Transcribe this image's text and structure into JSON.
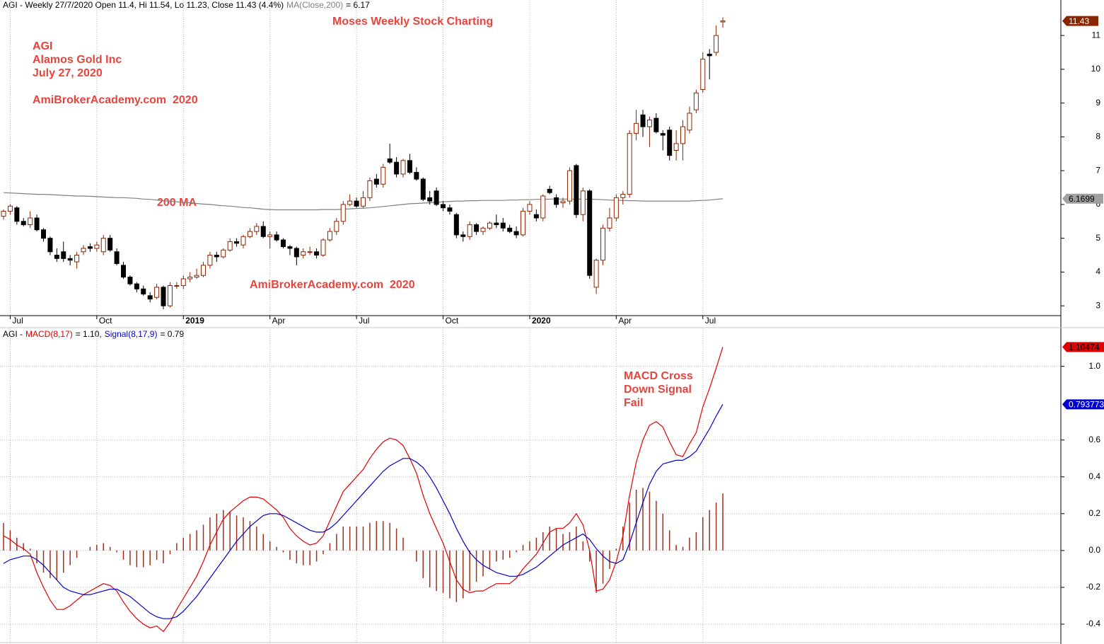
{
  "chart_data": [
    {
      "type": "candlestick",
      "header": {
        "title": "AGI - Weekly 27/7/2020 Open 11.4, Hi 11.54, Lo 11.23, Close 11.43 (4.4%)",
        "ma_name": "MA(Close,200)",
        "ma_readout": "= 6.17"
      },
      "annotations": {
        "banner": "Moses Weekly Stock Charting",
        "symbol": "AGI",
        "company": "Alamos Gold Inc",
        "date": "July 27, 2020",
        "site_top": "AmiBrokerAcademy.com  2020",
        "site_bottom": "AmiBrokerAcademy.com  2020",
        "ma_note": "200 MA"
      },
      "candle_up_color": "#8b2500",
      "candle_down_color": "#000000",
      "ma_color": "#808080",
      "close_label_color": "#8b2500",
      "ma_label_color": "#a0a0a0",
      "ylim": [
        2.71,
        12.05
      ],
      "yticks": [
        3,
        4,
        5,
        6,
        7,
        8,
        9,
        10,
        11
      ],
      "xticks": [
        {
          "value": 1,
          "label": "Jul"
        },
        {
          "value": 14,
          "label": "Oct"
        },
        {
          "value": 27,
          "label": "2019"
        },
        {
          "value": 40,
          "label": "Apr"
        },
        {
          "value": 53,
          "label": "Jul"
        },
        {
          "value": 66,
          "label": "Oct"
        },
        {
          "value": 79,
          "label": "2020"
        },
        {
          "value": 92,
          "label": "Apr"
        },
        {
          "value": 105,
          "label": "Jul"
        }
      ],
      "vgrid": true,
      "hgrid": false,
      "candles": [
        [
          5.65,
          5.85,
          5.55,
          5.8
        ],
        [
          5.8,
          6.0,
          5.7,
          5.95
        ],
        [
          5.9,
          5.95,
          5.4,
          5.5
        ],
        [
          5.5,
          5.6,
          5.35,
          5.4
        ],
        [
          5.4,
          5.8,
          5.3,
          5.6
        ],
        [
          5.6,
          5.7,
          5.2,
          5.25
        ],
        [
          5.25,
          5.3,
          4.9,
          5.0
        ],
        [
          5.0,
          5.05,
          4.5,
          4.6
        ],
        [
          4.5,
          4.7,
          4.3,
          4.4
        ],
        [
          4.6,
          4.9,
          4.3,
          4.4
        ],
        [
          4.4,
          4.5,
          4.2,
          4.35
        ],
        [
          4.3,
          4.6,
          4.1,
          4.5
        ],
        [
          4.6,
          4.8,
          4.5,
          4.7
        ],
        [
          4.75,
          4.85,
          4.6,
          4.7
        ],
        [
          4.7,
          4.9,
          4.6,
          4.8
        ],
        [
          4.6,
          5.1,
          4.5,
          5.0
        ],
        [
          5.0,
          5.1,
          4.6,
          4.65
        ],
        [
          4.6,
          4.7,
          4.2,
          4.25
        ],
        [
          4.2,
          4.3,
          3.8,
          3.85
        ],
        [
          3.85,
          3.9,
          3.6,
          3.65
        ],
        [
          3.65,
          3.7,
          3.4,
          3.5
        ],
        [
          3.5,
          3.6,
          3.3,
          3.35
        ],
        [
          3.3,
          3.4,
          3.1,
          3.2
        ],
        [
          3.25,
          3.65,
          3.2,
          3.55
        ],
        [
          3.55,
          3.6,
          2.9,
          3.0
        ],
        [
          3.0,
          3.7,
          2.95,
          3.6
        ],
        [
          3.6,
          3.7,
          3.5,
          3.6
        ],
        [
          3.6,
          3.9,
          3.5,
          3.8
        ],
        [
          3.8,
          4.0,
          3.7,
          3.85
        ],
        [
          3.85,
          4.1,
          3.8,
          3.9
        ],
        [
          3.9,
          4.3,
          3.85,
          4.2
        ],
        [
          4.2,
          4.6,
          4.1,
          4.5
        ],
        [
          4.5,
          4.6,
          4.3,
          4.45
        ],
        [
          4.45,
          4.7,
          4.4,
          4.65
        ],
        [
          4.65,
          5.0,
          4.6,
          4.9
        ],
        [
          4.9,
          5.0,
          4.75,
          4.85
        ],
        [
          4.8,
          5.1,
          4.7,
          5.05
        ],
        [
          5.05,
          5.3,
          5.0,
          5.2
        ],
        [
          5.2,
          5.45,
          5.1,
          5.35
        ],
        [
          5.35,
          5.5,
          5.0,
          5.05
        ],
        [
          5.05,
          5.2,
          4.7,
          5.1
        ],
        [
          5.1,
          5.2,
          4.9,
          4.95
        ],
        [
          4.95,
          5.0,
          4.7,
          4.75
        ],
        [
          4.75,
          4.8,
          4.5,
          4.7
        ],
        [
          4.7,
          4.75,
          4.2,
          4.45
        ],
        [
          4.5,
          4.7,
          4.4,
          4.6
        ],
        [
          4.6,
          4.75,
          4.5,
          4.6
        ],
        [
          4.6,
          4.7,
          4.4,
          4.5
        ],
        [
          4.5,
          5.0,
          4.45,
          4.95
        ],
        [
          4.95,
          5.3,
          4.9,
          5.2
        ],
        [
          5.2,
          5.6,
          5.1,
          5.5
        ],
        [
          5.5,
          6.1,
          5.4,
          6.0
        ],
        [
          6.0,
          6.3,
          5.95,
          6.1
        ],
        [
          6.1,
          6.2,
          5.9,
          5.95
        ],
        [
          5.95,
          6.4,
          5.9,
          6.2
        ],
        [
          6.2,
          6.8,
          6.1,
          6.7
        ],
        [
          6.75,
          6.9,
          6.5,
          6.6
        ],
        [
          6.6,
          7.2,
          6.5,
          7.1
        ],
        [
          7.35,
          7.8,
          7.2,
          7.25
        ],
        [
          7.25,
          7.4,
          6.8,
          6.9
        ],
        [
          6.9,
          7.35,
          6.8,
          7.3
        ],
        [
          7.3,
          7.5,
          6.9,
          6.95
        ],
        [
          6.95,
          7.1,
          6.7,
          6.75
        ],
        [
          6.75,
          6.8,
          6.1,
          6.15
        ],
        [
          6.2,
          6.4,
          6.0,
          6.1
        ],
        [
          6.4,
          6.5,
          5.95,
          6.0
        ],
        [
          6.0,
          6.1,
          5.8,
          5.9
        ],
        [
          5.9,
          6.0,
          5.7,
          5.8
        ],
        [
          5.7,
          5.75,
          5.0,
          5.1
        ],
        [
          5.1,
          5.2,
          4.9,
          5.05
        ],
        [
          5.05,
          5.5,
          4.95,
          5.4
        ],
        [
          5.4,
          5.45,
          5.1,
          5.2
        ],
        [
          5.2,
          5.35,
          5.1,
          5.3
        ],
        [
          5.3,
          5.5,
          5.25,
          5.45
        ],
        [
          5.45,
          5.7,
          5.3,
          5.4
        ],
        [
          5.45,
          5.6,
          5.2,
          5.3
        ],
        [
          5.3,
          5.4,
          5.15,
          5.2
        ],
        [
          5.2,
          5.35,
          5.0,
          5.1
        ],
        [
          5.1,
          5.9,
          5.05,
          5.8
        ],
        [
          5.8,
          6.1,
          5.7,
          6.0
        ],
        [
          5.7,
          5.85,
          5.5,
          5.6
        ],
        [
          5.6,
          6.3,
          5.5,
          6.25
        ],
        [
          6.45,
          6.55,
          6.3,
          6.35
        ],
        [
          6.2,
          6.3,
          5.9,
          6.0
        ],
        [
          6.05,
          6.2,
          5.9,
          6.1
        ],
        [
          6.1,
          7.1,
          6.0,
          7.0
        ],
        [
          7.15,
          7.2,
          5.6,
          5.7
        ],
        [
          5.7,
          6.5,
          5.5,
          6.4
        ],
        [
          6.4,
          6.45,
          3.8,
          3.9
        ],
        [
          3.55,
          4.4,
          3.35,
          4.35
        ],
        [
          4.35,
          5.4,
          4.2,
          5.3
        ],
        [
          5.3,
          5.9,
          5.2,
          5.6
        ],
        [
          5.6,
          6.3,
          5.5,
          6.2
        ],
        [
          6.2,
          6.4,
          6.0,
          6.3
        ],
        [
          6.3,
          8.2,
          6.2,
          8.1
        ],
        [
          8.1,
          8.8,
          7.9,
          8.4
        ],
        [
          8.65,
          8.8,
          8.0,
          8.3
        ],
        [
          8.3,
          8.6,
          7.7,
          8.5
        ],
        [
          8.55,
          8.7,
          8.1,
          8.15
        ],
        [
          8.1,
          8.2,
          7.6,
          8.05
        ],
        [
          8.2,
          8.3,
          7.3,
          7.45
        ],
        [
          7.6,
          8.2,
          7.3,
          7.8
        ],
        [
          7.8,
          8.5,
          7.3,
          8.3
        ],
        [
          8.2,
          8.9,
          8.1,
          8.7
        ],
        [
          8.8,
          9.4,
          8.7,
          9.3
        ],
        [
          9.4,
          10.5,
          9.3,
          10.3
        ],
        [
          10.45,
          10.6,
          9.7,
          10.4
        ],
        [
          10.5,
          11.3,
          10.4,
          11.0
        ],
        [
          11.4,
          11.54,
          11.23,
          11.43
        ]
      ],
      "ma": [
        6.35,
        6.34,
        6.33,
        6.32,
        6.31,
        6.3,
        6.3,
        6.29,
        6.28,
        6.27,
        6.26,
        6.25,
        6.25,
        6.24,
        6.23,
        6.22,
        6.21,
        6.2,
        6.2,
        6.19,
        6.18,
        6.16,
        6.15,
        6.13,
        6.11,
        6.1,
        6.08,
        6.06,
        6.05,
        6.03,
        6.01,
        6.0,
        5.98,
        5.96,
        5.95,
        5.93,
        5.91,
        5.9,
        5.88,
        5.86,
        5.85,
        5.84,
        5.84,
        5.84,
        5.84,
        5.84,
        5.84,
        5.84,
        5.85,
        5.85,
        5.85,
        5.86,
        5.87,
        5.88,
        5.89,
        5.9,
        5.92,
        5.94,
        5.96,
        5.98,
        6.0,
        6.02,
        6.03,
        6.04,
        6.05,
        6.06,
        6.08,
        6.09,
        6.1,
        6.1,
        6.11,
        6.11,
        6.12,
        6.12,
        6.12,
        6.12,
        6.13,
        6.13,
        6.14,
        6.14,
        6.15,
        6.15,
        6.16,
        6.16,
        6.16,
        6.16,
        6.16,
        6.16,
        6.15,
        6.15,
        6.14,
        6.13,
        6.12,
        6.12,
        6.11,
        6.11,
        6.1,
        6.1,
        6.1,
        6.1,
        6.1,
        6.1,
        6.1,
        6.1,
        6.11,
        6.12,
        6.13,
        6.15,
        6.1699
      ]
    },
    {
      "type": "macd",
      "header": {
        "symbol": "AGI -",
        "macd_readout": "= 1.10,",
        "signal_readout": "= 0.79"
      },
      "annotations": {
        "line1": "MACD Cross",
        "line2": "Down Signal",
        "line3": "Fail"
      },
      "ylim": [
        -0.5,
        1.21
      ],
      "yticks": [
        -0.4,
        -0.2,
        {
          "value": 0,
          "label": "0.0"
        },
        0.2,
        0.4,
        0.6,
        {
          "value": 1,
          "label": "1.0"
        }
      ],
      "vgrid": true,
      "hgrid": true,
      "series": [
        {
          "name": "MACD(8,17)",
          "color": "#e00000",
          "values": [
            0.08,
            0.06,
            0.03,
            0.01,
            -0.02,
            -0.12,
            -0.2,
            -0.27,
            -0.32,
            -0.32,
            -0.3,
            -0.27,
            -0.24,
            -0.22,
            -0.2,
            -0.18,
            -0.19,
            -0.22,
            -0.28,
            -0.33,
            -0.37,
            -0.4,
            -0.42,
            -0.41,
            -0.44,
            -0.39,
            -0.32,
            -0.26,
            -0.2,
            -0.14,
            -0.06,
            0.03,
            0.1,
            0.17,
            0.21,
            0.24,
            0.27,
            0.29,
            0.29,
            0.28,
            0.25,
            0.22,
            0.18,
            0.12,
            0.08,
            0.05,
            0.03,
            0.04,
            0.08,
            0.16,
            0.24,
            0.32,
            0.36,
            0.4,
            0.44,
            0.5,
            0.55,
            0.59,
            0.61,
            0.6,
            0.57,
            0.5,
            0.42,
            0.3,
            0.2,
            0.12,
            0.04,
            -0.06,
            -0.16,
            -0.21,
            -0.23,
            -0.22,
            -0.22,
            -0.2,
            -0.18,
            -0.18,
            -0.18,
            -0.15,
            -0.1,
            -0.06,
            -0.02,
            0.04,
            0.1,
            0.12,
            0.12,
            0.15,
            0.2,
            0.14,
            0.0,
            -0.22,
            -0.21,
            -0.16,
            -0.06,
            0.08,
            0.3,
            0.48,
            0.6,
            0.68,
            0.7,
            0.67,
            0.59,
            0.52,
            0.51,
            0.58,
            0.64,
            0.78,
            0.88,
            0.99,
            1.10474
          ]
        },
        {
          "name": "Signal(8,17,9)",
          "color": "#0000d0",
          "values": [
            -0.07,
            -0.05,
            -0.04,
            -0.03,
            -0.03,
            -0.05,
            -0.08,
            -0.12,
            -0.16,
            -0.2,
            -0.22,
            -0.23,
            -0.24,
            -0.24,
            -0.23,
            -0.22,
            -0.21,
            -0.21,
            -0.23,
            -0.25,
            -0.28,
            -0.31,
            -0.34,
            -0.36,
            -0.37,
            -0.37,
            -0.36,
            -0.33,
            -0.29,
            -0.25,
            -0.2,
            -0.15,
            -0.1,
            -0.05,
            0.0,
            0.05,
            0.09,
            0.13,
            0.16,
            0.19,
            0.2,
            0.2,
            0.19,
            0.17,
            0.15,
            0.13,
            0.11,
            0.1,
            0.1,
            0.12,
            0.15,
            0.19,
            0.23,
            0.27,
            0.31,
            0.35,
            0.39,
            0.43,
            0.46,
            0.48,
            0.5,
            0.5,
            0.48,
            0.45,
            0.4,
            0.34,
            0.27,
            0.2,
            0.12,
            0.05,
            -0.01,
            -0.05,
            -0.08,
            -0.1,
            -0.12,
            -0.13,
            -0.14,
            -0.14,
            -0.13,
            -0.11,
            -0.09,
            -0.06,
            -0.03,
            0.0,
            0.03,
            0.05,
            0.07,
            0.09,
            0.06,
            0.01,
            -0.03,
            -0.06,
            -0.07,
            -0.05,
            0.04,
            0.15,
            0.26,
            0.36,
            0.43,
            0.47,
            0.48,
            0.49,
            0.49,
            0.51,
            0.54,
            0.6,
            0.66,
            0.73,
            0.793773
          ]
        }
      ],
      "histogram": {
        "color": "#a0301c",
        "values": [
          0.15,
          0.11,
          0.07,
          0.04,
          0.01,
          -0.07,
          -0.12,
          -0.15,
          -0.16,
          -0.12,
          -0.08,
          -0.04,
          0.0,
          0.02,
          0.03,
          0.04,
          0.02,
          -0.01,
          -0.05,
          -0.08,
          -0.09,
          -0.09,
          -0.08,
          -0.05,
          -0.07,
          -0.02,
          0.04,
          0.07,
          0.09,
          0.11,
          0.14,
          0.18,
          0.2,
          0.22,
          0.21,
          0.19,
          0.18,
          0.16,
          0.13,
          0.09,
          0.05,
          0.02,
          -0.01,
          -0.05,
          -0.07,
          -0.08,
          -0.08,
          -0.06,
          -0.02,
          0.04,
          0.09,
          0.13,
          0.13,
          0.13,
          0.13,
          0.15,
          0.16,
          0.16,
          0.15,
          0.12,
          0.07,
          0.0,
          -0.06,
          -0.15,
          -0.2,
          -0.22,
          -0.23,
          -0.26,
          -0.28,
          -0.26,
          -0.22,
          -0.17,
          -0.14,
          -0.1,
          -0.06,
          -0.05,
          -0.04,
          -0.01,
          0.03,
          0.05,
          0.07,
          0.1,
          0.13,
          0.12,
          0.09,
          0.1,
          0.13,
          0.05,
          -0.06,
          -0.23,
          -0.18,
          -0.1,
          0.01,
          0.13,
          0.26,
          0.33,
          0.34,
          0.32,
          0.27,
          0.2,
          0.11,
          0.03,
          0.02,
          0.07,
          0.1,
          0.18,
          0.22,
          0.26,
          0.31
        ]
      }
    }
  ]
}
